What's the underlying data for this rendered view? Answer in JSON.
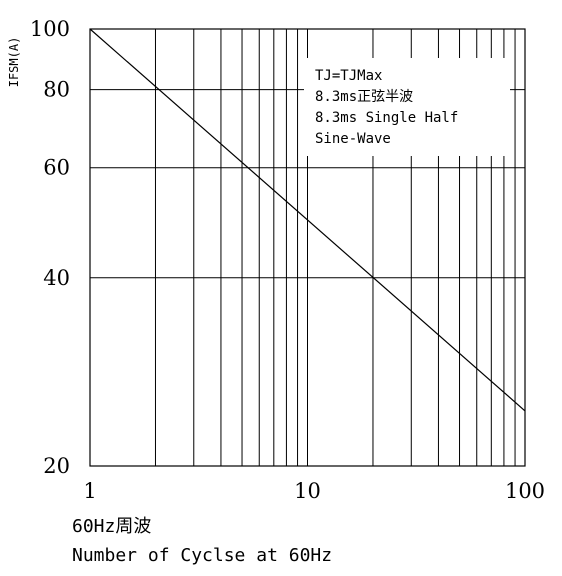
{
  "chart_data": {
    "type": "line",
    "xscale": "log",
    "yscale": "log",
    "xlim": [
      1,
      100
    ],
    "ylim": [
      20,
      100
    ],
    "xticks": [
      "1",
      "10",
      "100"
    ],
    "yticks": [
      "100",
      "80",
      "60",
      "40",
      "20"
    ],
    "ylabel": "IFSM(A)",
    "xlabel_lines": [
      "60Hz周波",
      "Number of Cyclse at 60Hz"
    ],
    "annotation": [
      "TJ=TJMax",
      "8.3ms正弦半波",
      "8.3ms Single Half",
      "Sine-Wave"
    ],
    "grid": true,
    "series": [
      {
        "x": [
          1,
          100
        ],
        "y": [
          100,
          24.5
        ]
      }
    ]
  }
}
